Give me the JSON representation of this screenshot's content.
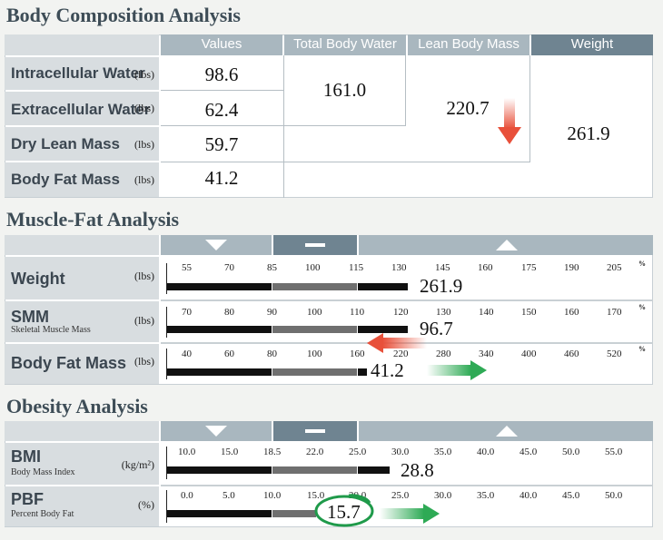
{
  "body_composition": {
    "title": "Body Composition Analysis",
    "headers": {
      "values": "Values",
      "total_body_water": "Total Body Water",
      "lean_body_mass": "Lean Body Mass",
      "weight": "Weight"
    },
    "rows": [
      {
        "label": "Intracellular Water",
        "unit": "(lbs)",
        "value": "98.6"
      },
      {
        "label": "Extracellular Water",
        "unit": "(lbs)",
        "value": "62.4"
      },
      {
        "label": "Dry Lean Mass",
        "unit": "(lbs)",
        "value": "59.7"
      },
      {
        "label": "Body Fat Mass",
        "unit": "(lbs)",
        "value": "41.2"
      }
    ],
    "total_body_water": "161.0",
    "lean_body_mass": "220.7",
    "weight": "261.9"
  },
  "muscle_fat": {
    "title": "Muscle-Fat Analysis",
    "header_icons": [
      "triangle-down-icon",
      "dash-icon",
      "triangle-up-icon"
    ],
    "rows": [
      {
        "label": "Weight",
        "sub": "",
        "unit": "(lbs)",
        "value": "261.9",
        "scale": [
          "55",
          "70",
          "85",
          "100",
          "115",
          "130",
          "145",
          "160",
          "175",
          "190",
          "205"
        ],
        "pct": "%"
      },
      {
        "label": "SMM",
        "sub": "Skeletal Muscle Mass",
        "unit": "(lbs)",
        "value": "96.7",
        "scale": [
          "70",
          "80",
          "90",
          "100",
          "110",
          "120",
          "130",
          "140",
          "150",
          "160",
          "170"
        ],
        "pct": "%"
      },
      {
        "label": "Body Fat Mass",
        "sub": "",
        "unit": "(lbs)",
        "value": "41.2",
        "scale": [
          "40",
          "60",
          "80",
          "100",
          "160",
          "220",
          "280",
          "340",
          "400",
          "460",
          "520"
        ],
        "pct": "%"
      }
    ]
  },
  "obesity": {
    "title": "Obesity Analysis",
    "header_icons": [
      "triangle-down-icon",
      "dash-icon",
      "triangle-up-icon"
    ],
    "rows": [
      {
        "label": "BMI",
        "sub": "Body Mass Index",
        "unit": "(kg/m²)",
        "value": "28.8",
        "scale": [
          "10.0",
          "15.0",
          "18.5",
          "22.0",
          "25.0",
          "30.0",
          "35.0",
          "40.0",
          "45.0",
          "50.0",
          "55.0"
        ]
      },
      {
        "label": "PBF",
        "sub": "Percent Body Fat",
        "unit": "(%)",
        "value": "15.7",
        "scale": [
          "0.0",
          "5.0",
          "10.0",
          "15.0",
          "20.0",
          "25.0",
          "30.0",
          "35.0",
          "40.0",
          "45.0",
          "50.0"
        ]
      }
    ]
  },
  "colors": {
    "header_light": "#a9b7bf",
    "header_dark": "#6f8491",
    "label_bg": "#d8dde0",
    "arrow_red": "#e8503a",
    "arrow_green": "#2eaa55",
    "circle_green": "#1f9a4a"
  }
}
